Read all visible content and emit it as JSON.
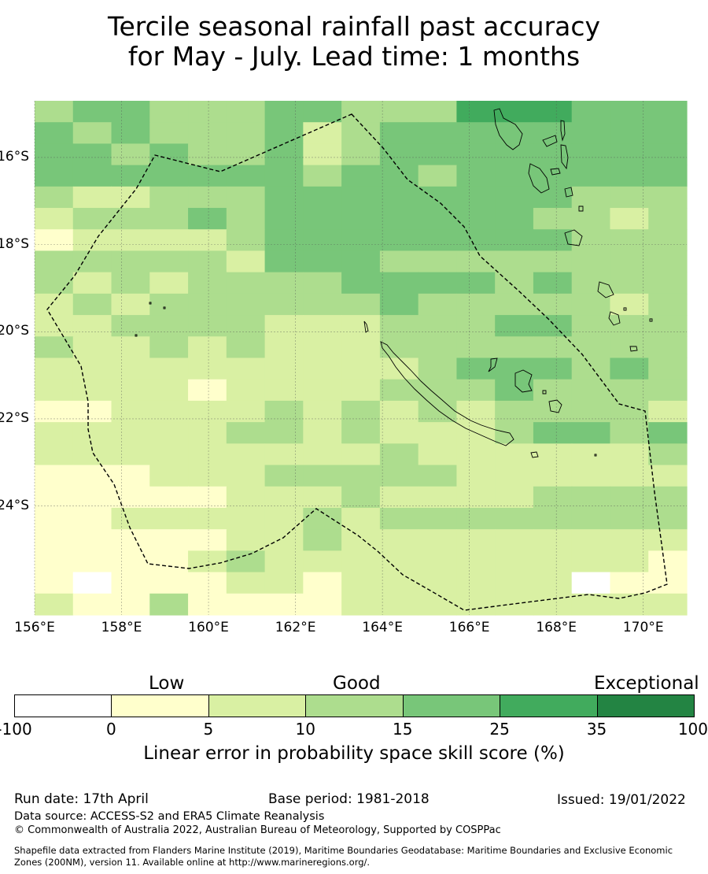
{
  "title": {
    "line1": "Tercile seasonal rainfall past accuracy",
    "line2": "for May - July. Lead time: 1 months"
  },
  "map": {
    "lon_ticks": [
      "156°E",
      "158°E",
      "160°E",
      "162°E",
      "164°E",
      "166°E",
      "168°E",
      "170°E"
    ],
    "lat_ticks": [
      "16°S",
      "18°S",
      "20°S",
      "22°S",
      "24°S"
    ],
    "lon_range": [
      156,
      171
    ],
    "lat_range": [
      -14.7,
      -26.5
    ],
    "grid_lines": true,
    "palette": [
      "#ffffff",
      "#ffffcc",
      "#d9f0a3",
      "#addd8e",
      "#78c679",
      "#41ab5d",
      "#238443"
    ],
    "cells": [
      "34433344333555444",
      "43433342344444444",
      "44343342344444444",
      "44444443443444444",
      "32233344444444333",
      "23334344444443323",
      "12222344444444333",
      "33333244433333333",
      "32323333444434333",
      "23233333343333323",
      "22333322233344333",
      "32232322233333333",
      "22222222223444343",
      "22221222233343333",
      "11222232323233332",
      "22222332322234434",
      "22222222232222223",
      "11122233333222222",
      "11111222322223333",
      "11222223233333333",
      "11111223222222222",
      "11112322222222221",
      "10111221222222011",
      "21131111222222222"
    ]
  },
  "colorbar": {
    "categories": [
      "Low",
      "Good",
      "Exceptional"
    ],
    "ticks": [
      "-100",
      "0",
      "5",
      "10",
      "15",
      "25",
      "35",
      "100"
    ],
    "colors": [
      "#ffffff",
      "#ffffcc",
      "#d9f0a3",
      "#addd8e",
      "#78c679",
      "#41ab5d",
      "#238443"
    ],
    "label": "Linear error in probability space skill score (%)"
  },
  "footer": {
    "run_date": "Run date: 17th April",
    "base_period": "Base period: 1981-2018",
    "issued": "Issued: 19/01/2022",
    "data_source": "Data source: ACCESS-S2 and ERA5 Climate Reanalysis",
    "copyright": "© Commonwealth of Australia 2022, Australian Bureau of Meteorology, Supported by COSPPac",
    "shapefile1": "Shapefile data extracted from Flanders Marine Institute (2019), Maritime Boundaries Geodatabase: Maritime Boundaries and Exclusive Economic",
    "shapefile2": "Zones (200NM), version 11. Available online at http://www.marineregions.org/."
  }
}
